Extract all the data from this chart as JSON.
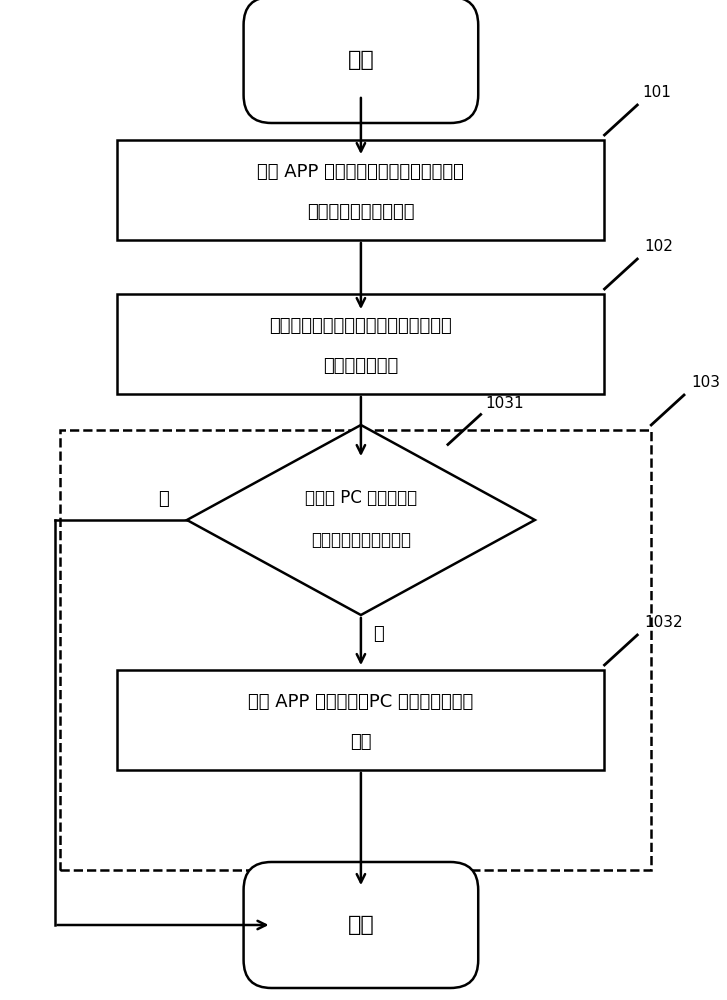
{
  "background_color": "#ffffff",
  "start_label": "开始",
  "end_label": "结束",
  "box1_line1": "获取 APP 运行设备的传感器设备属性和",
  "box1_line2": "传感器产生的特征信号",
  "box2_line1": "根据传感器设备属性和特征信号自动的",
  "box2_line2": "生成传感器指纹",
  "diamond_line1": "是否与 PC 上伪造的手",
  "diamond_line2": "机各类传感器指纹吻合",
  "box3_line1": "确定 APP 运行设备为PC 上伪造的手机移",
  "box3_line2": "动端",
  "label_101": "101",
  "label_102": "102",
  "label_103": "103",
  "label_1031": "1031",
  "label_1032": "1032",
  "yes_label": "是",
  "no_label": "否",
  "lw": 1.8,
  "font_size": 13,
  "label_font_size": 11
}
